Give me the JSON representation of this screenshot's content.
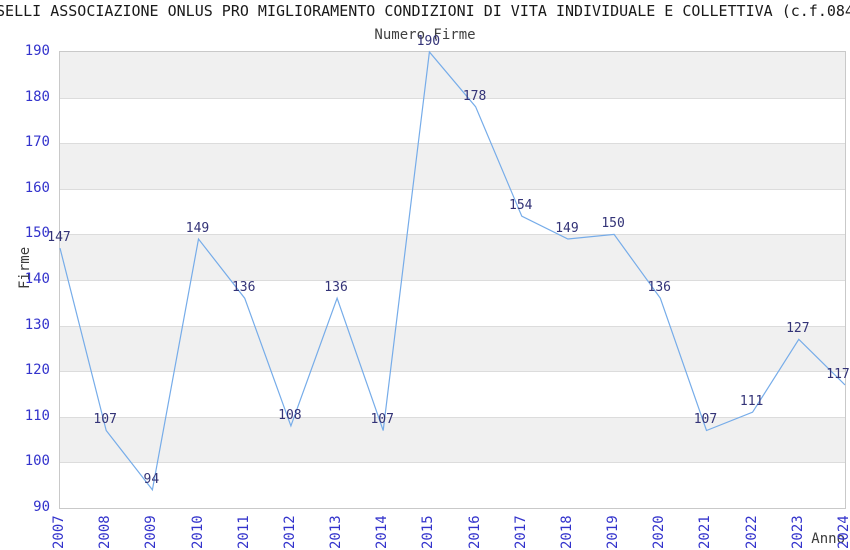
{
  "header": {
    "title": "SELLI ASSOCIAZIONE ONLUS PRO MIGLIORAMENTO CONDIZIONI DI VITA INDIVIDUALE E COLLETTIVA (c.f.084",
    "subtitle": "Numero Firme"
  },
  "chart_data": {
    "type": "line",
    "title": "Numero Firme",
    "xlabel": "Anno",
    "ylabel": "Firme",
    "categories": [
      "2007",
      "2008",
      "2009",
      "2010",
      "2011",
      "2012",
      "2013",
      "2014",
      "2015",
      "2016",
      "2017",
      "2018",
      "2019",
      "2020",
      "2021",
      "2022",
      "2023",
      "2024"
    ],
    "values": [
      147,
      107,
      94,
      149,
      136,
      108,
      136,
      107,
      190,
      178,
      154,
      149,
      150,
      136,
      107,
      111,
      127,
      117
    ],
    "ylim": [
      90,
      190
    ],
    "ytick_step": 10,
    "grid": "horizontal-bands",
    "legend": "none",
    "colors": {
      "line": "#76ace9",
      "tick_labels": "#3333cc",
      "point_labels": "#333377",
      "band": "#f0f0f0",
      "gridline": "#dcdcdc",
      "frame": "#c9c9c9",
      "title": "#1a1a1a",
      "axis_titles": "#3a3a3a"
    }
  }
}
